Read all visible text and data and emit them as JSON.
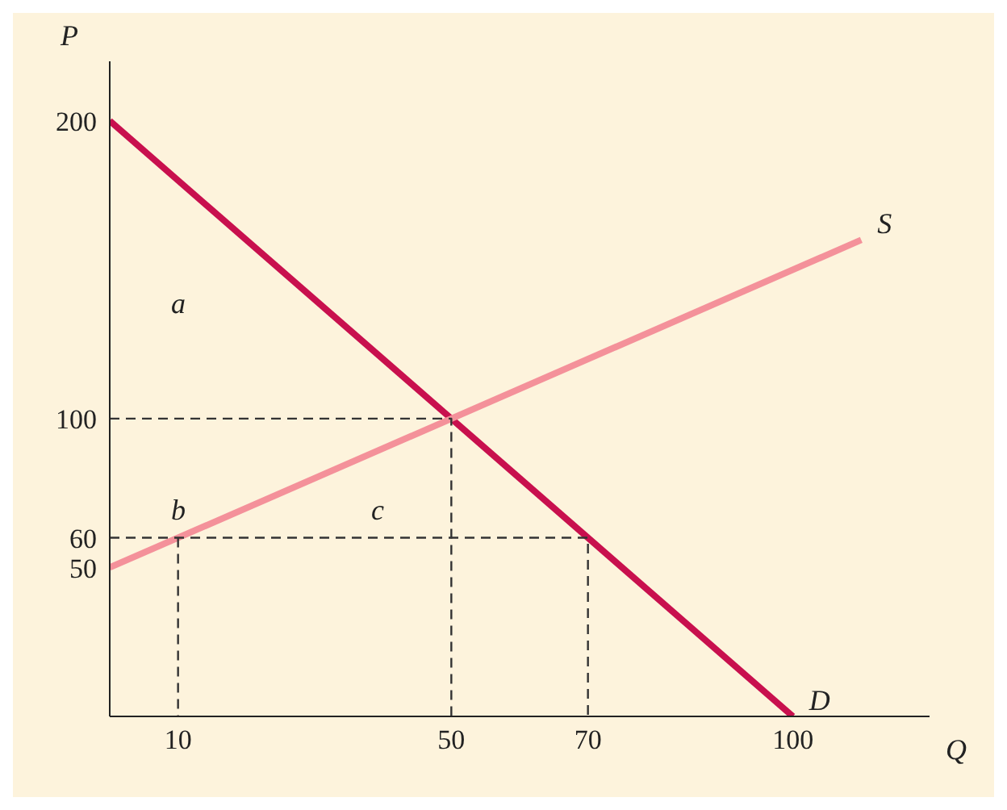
{
  "chart_data": {
    "type": "line",
    "xlabel": "Q",
    "ylabel": "P",
    "xlim": [
      0,
      120
    ],
    "ylim": [
      0,
      220
    ],
    "xticks": [
      10,
      50,
      70,
      100
    ],
    "yticks": [
      50,
      60,
      100,
      200
    ],
    "marker": "none",
    "series": [
      {
        "name": "D",
        "color": "#c8104e",
        "x": [
          0,
          100
        ],
        "values": [
          200,
          0
        ]
      },
      {
        "name": "S",
        "color": "#f4919a",
        "x": [
          0,
          110
        ],
        "values": [
          50,
          160
        ]
      },
      {
        "color": "#333333",
        "line_style": "dashed",
        "x": [
          0,
          50,
          50
        ],
        "values": [
          100,
          100,
          0
        ]
      },
      {
        "color": "#333333",
        "line_style": "dashed",
        "x": [
          0,
          70,
          70
        ],
        "values": [
          60,
          60,
          0
        ]
      },
      {
        "color": "#333333",
        "line_style": "dashed",
        "x": [
          10,
          10
        ],
        "values": [
          60,
          0
        ]
      }
    ],
    "annotations": [
      "a",
      "b",
      "c"
    ]
  }
}
